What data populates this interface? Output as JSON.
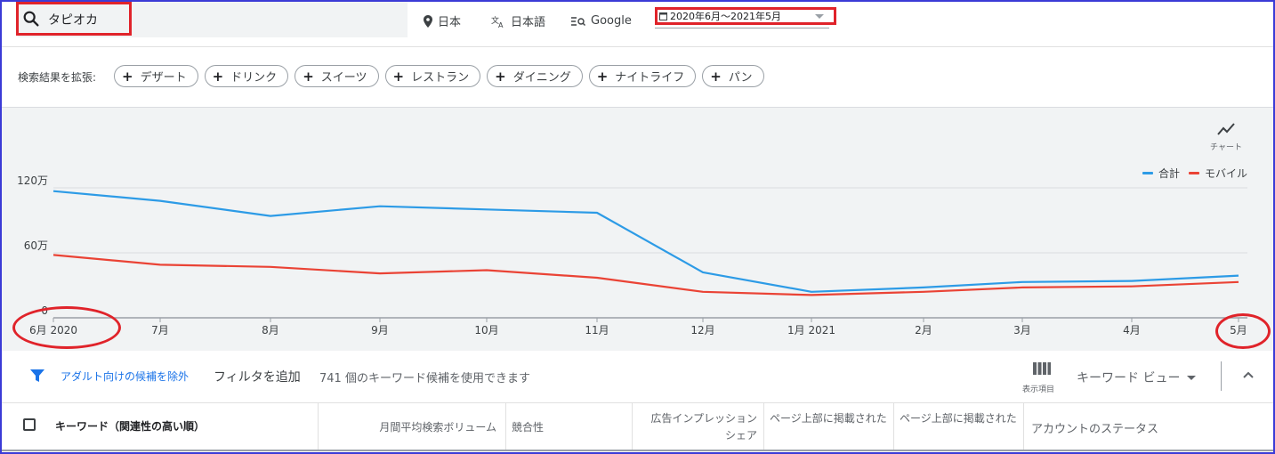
{
  "search": {
    "value": "タピオカ"
  },
  "top_bar": {
    "location": "日本",
    "language": "日本語",
    "network": "Google",
    "date_range": "2020年6月～2021年5月"
  },
  "expand": {
    "label": "検索結果を拡張:",
    "chips": [
      "デザート",
      "ドリンク",
      "スイーツ",
      "レストラン",
      "ダイニング",
      "ナイトライフ",
      "パン"
    ]
  },
  "chart_toggle": {
    "label": "チャート",
    "icon": "trend-line-icon"
  },
  "colors": {
    "total": "#2d9be6",
    "mobile": "#ea4335",
    "annotation": "#e0232a",
    "frame": "#3b3bd6"
  },
  "chart_data": {
    "type": "line",
    "categories": [
      "6月 2020",
      "7月",
      "8月",
      "9月",
      "10月",
      "11月",
      "12月",
      "1月 2021",
      "2月",
      "3月",
      "4月",
      "5月"
    ],
    "yticks": [
      "0",
      "60万",
      "120万"
    ],
    "ytick_values": [
      0,
      600000,
      1200000
    ],
    "ylim": [
      0,
      1200000
    ],
    "legend_position": "top-right",
    "series": [
      {
        "name": "合計",
        "values": [
          1170000,
          1080000,
          940000,
          1030000,
          1000000,
          970000,
          420000,
          240000,
          280000,
          330000,
          340000,
          390000
        ]
      },
      {
        "name": "モバイル",
        "values": [
          580000,
          490000,
          470000,
          410000,
          440000,
          370000,
          240000,
          210000,
          240000,
          280000,
          290000,
          330000
        ]
      }
    ]
  },
  "filter_bar": {
    "adult_link": "アダルト向けの候補を除外",
    "add_filter": "フィルタを追加",
    "keyword_count": "741 個のキーワード候補を使用できます",
    "columns_label": "表示項目",
    "keyword_view": "キーワード ビュー"
  },
  "table": {
    "headers": {
      "keyword": "キーワード（関連性の高い順）",
      "volume": "月間平均検索ボリューム",
      "competition": "競合性",
      "impression_line1": "広告インプレッション",
      "impression_line2": "シェア",
      "top_bid_low": "ページ上部に掲載された",
      "top_bid_high": "ページ上部に掲載された",
      "account_status": "アカウントのステータス"
    }
  }
}
